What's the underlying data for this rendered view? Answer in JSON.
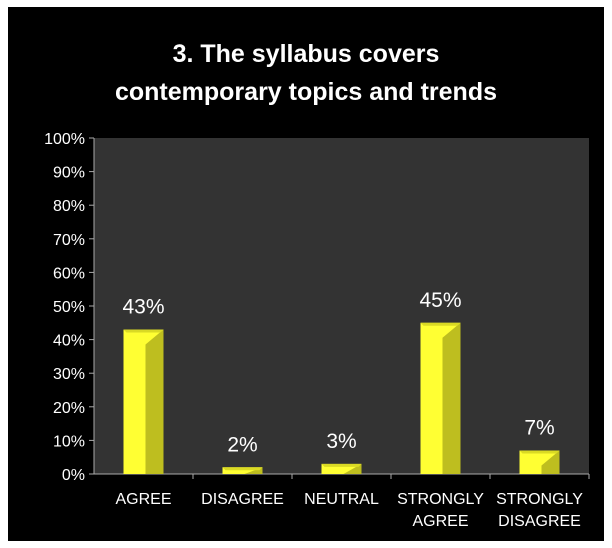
{
  "chart_data": {
    "type": "bar",
    "title_lines": [
      "3. The syllabus covers",
      "contemporary topics and trends"
    ],
    "categories": [
      [
        "AGREE"
      ],
      [
        "DISAGREE"
      ],
      [
        "NEUTRAL"
      ],
      [
        "STRONGLY",
        "AGREE"
      ],
      [
        "STRONGLY",
        "DISAGREE"
      ]
    ],
    "values": [
      43,
      2,
      3,
      45,
      7
    ],
    "value_labels": [
      "43%",
      "2%",
      "3%",
      "45%",
      "7%"
    ],
    "y_ticks": [
      "0%",
      "10%",
      "20%",
      "30%",
      "40%",
      "50%",
      "60%",
      "70%",
      "80%",
      "90%",
      "100%"
    ],
    "ylim": [
      0,
      100
    ],
    "grid": false,
    "legend": "none"
  },
  "colors": {
    "background": "#000000",
    "plot_area": "#333333",
    "bar_front": "#ffff33",
    "bar_side": "#a8a81a",
    "bar_top": "#dada24",
    "text": "#ffffff"
  }
}
